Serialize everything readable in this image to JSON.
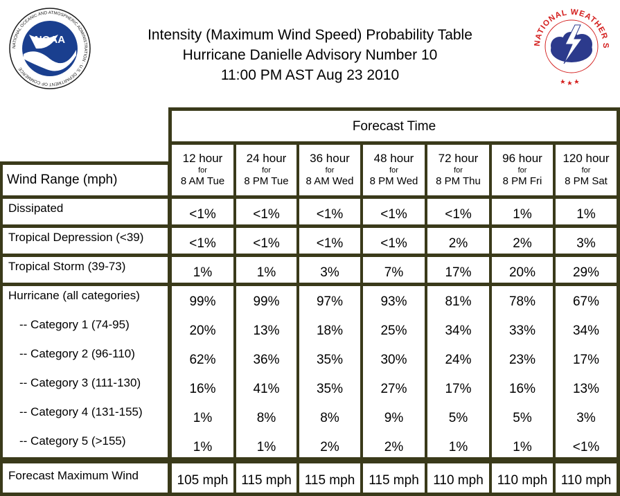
{
  "title_lines": [
    "Intensity (Maximum Wind Speed) Probability Table",
    "Hurricane Danielle Advisory Number 10",
    "11:00 PM AST Aug 23 2010"
  ],
  "logos": {
    "left": {
      "name": "noaa-logo",
      "text": "NOAA",
      "ring_text": "NATIONAL OCEANIC AND ATMOSPHERIC ADMINISTRATION · U.S. DEPARTMENT OF COMMERCE"
    },
    "right": {
      "name": "nws-logo",
      "ring_text": "NATIONAL WEATHER SERVICE"
    }
  },
  "colors": {
    "frame": "#3a3a1a",
    "noaa_blue": "#1a3f8f",
    "nws_red": "#d4201f",
    "nws_cloud": "#2c3a8c"
  },
  "table": {
    "forecast_time_label": "Forecast Time",
    "wind_range_label": "Wind Range (mph)",
    "for_label": "for",
    "columns": [
      {
        "hour": "12 hour",
        "when": "8 AM Tue"
      },
      {
        "hour": "24 hour",
        "when": "8 PM Tue"
      },
      {
        "hour": "36 hour",
        "when": "8 AM Wed"
      },
      {
        "hour": "48 hour",
        "when": "8 PM Wed"
      },
      {
        "hour": "72 hour",
        "when": "8 PM Thu"
      },
      {
        "hour": "96 hour",
        "when": "8 PM Fri"
      },
      {
        "hour": "120 hour",
        "when": "8 PM Sat"
      }
    ],
    "rows": [
      {
        "label": "Dissipated",
        "values": [
          "<1%",
          "<1%",
          "<1%",
          "<1%",
          "<1%",
          "1%",
          "1%"
        ]
      },
      {
        "label": "Tropical Depression (<39)",
        "values": [
          "<1%",
          "<1%",
          "<1%",
          "<1%",
          "2%",
          "2%",
          "3%"
        ]
      },
      {
        "label": "Tropical Storm (39-73)",
        "values": [
          "1%",
          "1%",
          "3%",
          "7%",
          "17%",
          "20%",
          "29%"
        ]
      },
      {
        "label": "Hurricane (all categories)",
        "values": [
          "99%",
          "99%",
          "97%",
          "93%",
          "81%",
          "78%",
          "67%"
        ]
      },
      {
        "label": "-- Category 1 (74-95)",
        "values": [
          "20%",
          "13%",
          "18%",
          "25%",
          "34%",
          "33%",
          "34%"
        ]
      },
      {
        "label": "-- Category 2 (96-110)",
        "values": [
          "62%",
          "36%",
          "35%",
          "30%",
          "24%",
          "23%",
          "17%"
        ]
      },
      {
        "label": "-- Category 3 (111-130)",
        "values": [
          "16%",
          "41%",
          "35%",
          "27%",
          "17%",
          "16%",
          "13%"
        ]
      },
      {
        "label": "-- Category 4 (131-155)",
        "values": [
          "1%",
          "8%",
          "8%",
          "9%",
          "5%",
          "5%",
          "3%"
        ]
      },
      {
        "label": "-- Category 5 (>155)",
        "values": [
          "1%",
          "1%",
          "2%",
          "2%",
          "1%",
          "1%",
          "<1%"
        ]
      }
    ],
    "max_wind": {
      "label": "Forecast Maximum Wind",
      "values": [
        "105 mph",
        "115 mph",
        "115 mph",
        "115 mph",
        "110 mph",
        "110 mph",
        "110 mph"
      ]
    }
  }
}
